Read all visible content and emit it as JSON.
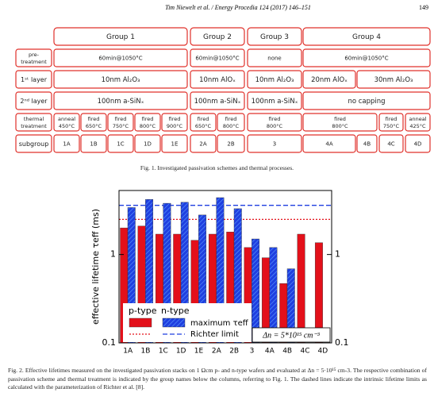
{
  "header": {
    "running_title": "Tim Niewelt et al. / Energy Procedia 124 (2017) 146–151",
    "page": "149"
  },
  "figure1": {
    "groups": [
      "Group 1",
      "Group 2",
      "Group 3",
      "Group 4"
    ],
    "rows": [
      {
        "label": "pre-\ntreatment",
        "cells": [
          "60min@1050°C",
          "60min@1050°C",
          "none",
          "60min@1050°C"
        ]
      },
      {
        "label": "1ˢᵗ layer",
        "cells": [
          "10nm Al₂O₃",
          "10nm AlOₓ",
          "10nm Al₂O₃",
          "20nm AlOₓ",
          "30nm Al₂O₃"
        ]
      },
      {
        "label": "2ⁿᵈ layer",
        "cells": [
          "100nm a-SiNₓ",
          "100nm a-SiNₓ",
          "100nm a-SiNₓ",
          "no capping"
        ]
      },
      {
        "label": "thermal\ntreatment",
        "cells": [
          "anneal\n450°C",
          "fired\n650°C",
          "fired\n750°C",
          "fired\n800°C",
          "fired\n900°C",
          "fired\n650°C",
          "fired\n800°C",
          "fired\n800°C",
          "fired\n800°C",
          "fired\n750°C",
          "anneal\n425°C"
        ]
      },
      {
        "label": "subgroup",
        "cells": [
          "1A",
          "1B",
          "1C",
          "1D",
          "1E",
          "2A",
          "2B",
          "3",
          "4A",
          "4B",
          "4C",
          "4D"
        ]
      }
    ],
    "caption": "Fig. 1. Investigated passivation schemes and thermal processes."
  },
  "chart_data": {
    "type": "bar",
    "y_label": "effective lifetime τeff (ms)",
    "categories": [
      "1A",
      "1B",
      "1C",
      "1D",
      "1E",
      "2A",
      "2B",
      "3",
      "4A",
      "4B",
      "4C",
      "4D"
    ],
    "series": [
      {
        "name": "p-type",
        "color": "#e3101a",
        "values": [
          2.0,
          2.1,
          1.7,
          1.7,
          1.45,
          1.7,
          1.8,
          1.2,
          0.92,
          0.47,
          1.7,
          1.36
        ]
      },
      {
        "name": "n-type",
        "color": "#1f3fe0",
        "values": [
          3.4,
          4.2,
          3.8,
          3.9,
          2.8,
          4.4,
          3.3,
          1.5,
          1.2,
          0.69,
          null,
          null
        ]
      }
    ],
    "hatch_label": "maximum τeff",
    "richter_limit": {
      "label": "Richter limit",
      "values": [
        2.5,
        3.6
      ]
    },
    "annotation": "Δn = 5*10¹⁵ cm⁻³",
    "ylim": [
      0.1,
      5.3
    ],
    "yticks": [
      0.1,
      1
    ],
    "log_scale": true,
    "caption": "Fig. 2. Effective lifetimes measured on the investigated passivation stacks on 1 Ωcm p- and n-type wafers and evaluated at Δn = 5·10¹⁵ cm-3. The respective combination of passivation scheme and thermal treatment is indicated by the group names below the columns, referring to Fig. 1. The dashed lines indicate the intrinsic lifetime limits as calculated with the parameterization of Richter et al. [8]."
  }
}
